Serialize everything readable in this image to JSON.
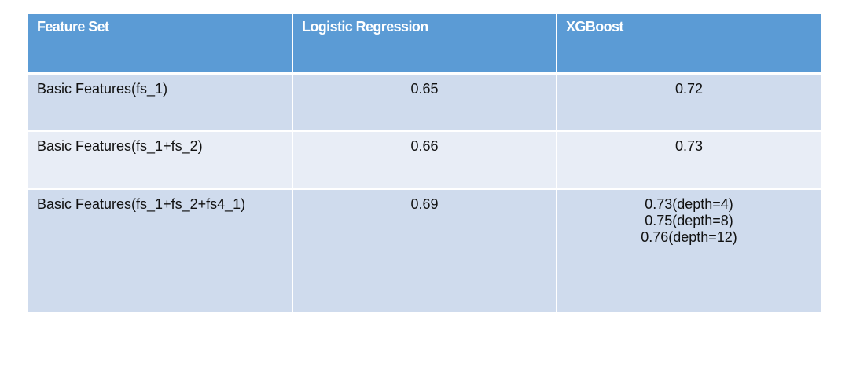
{
  "table": {
    "headers": [
      "Feature Set",
      "Logistic Regression",
      "XGBoost"
    ],
    "rows": [
      {
        "feature_set": "Basic Features(fs_1)",
        "logistic_regression": "0.65",
        "xgboost": [
          "0.72"
        ]
      },
      {
        "feature_set": "Basic Features(fs_1+fs_2)",
        "logistic_regression": "0.66",
        "xgboost": [
          "0.73"
        ]
      },
      {
        "feature_set": "Basic Features(fs_1+fs_2+fs4_1)",
        "logistic_regression": "0.69",
        "xgboost": [
          "0.73(depth=4)",
          "0.75(depth=8)",
          "0.76(depth=12)"
        ]
      }
    ]
  },
  "colors": {
    "header_bg": "#5b9bd5",
    "row_odd_bg": "#cfdbed",
    "row_even_bg": "#e8edf6"
  }
}
